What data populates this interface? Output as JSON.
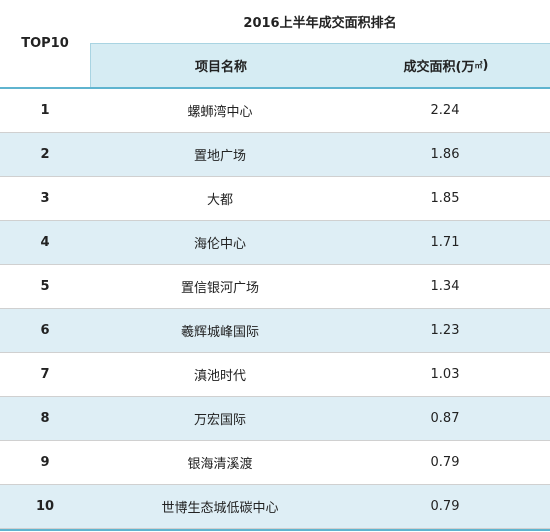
{
  "header": {
    "rank_label": "TOP10",
    "title": "2016上半年成交面积排名",
    "col_name": "项目名称",
    "col_area": "成交面积(万",
    "col_area_unit": "㎡",
    "col_area_close": ")"
  },
  "rows": [
    {
      "rank": "1",
      "name": "螺蛳湾中心",
      "area": "2.24"
    },
    {
      "rank": "2",
      "name": "置地广场",
      "area": "1.86"
    },
    {
      "rank": "3",
      "name": "大都",
      "area": "1.85"
    },
    {
      "rank": "4",
      "name": "海伦中心",
      "area": "1.71"
    },
    {
      "rank": "5",
      "name": "置信银河广场",
      "area": "1.34"
    },
    {
      "rank": "6",
      "name": "羲辉城峰国际",
      "area": "1.23"
    },
    {
      "rank": "7",
      "name": "滇池时代",
      "area": "1.03"
    },
    {
      "rank": "8",
      "name": "万宏国际",
      "area": "0.87"
    },
    {
      "rank": "9",
      "name": "银海清溪渡",
      "area": "0.79"
    },
    {
      "rank": "10",
      "name": "世博生态城低碳中心",
      "area": "0.79"
    }
  ],
  "colors": {
    "header_fill": "#d6ecf3",
    "alt_row_fill": "#deeef5",
    "accent_rule": "#5fb4cf"
  }
}
